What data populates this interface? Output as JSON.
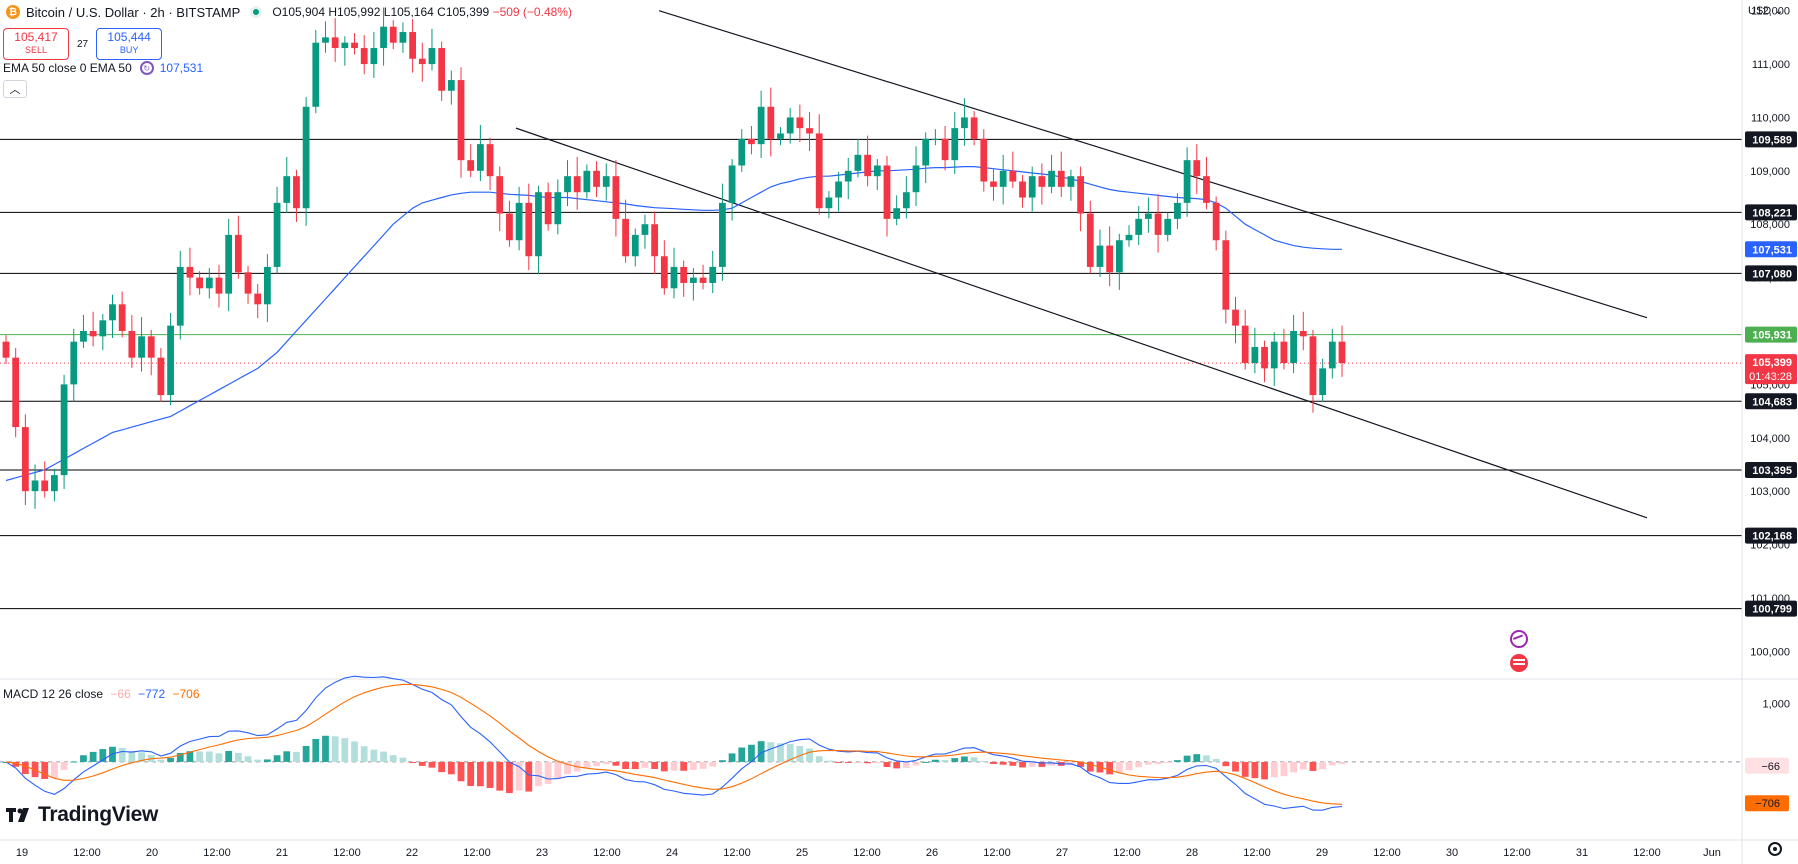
{
  "header": {
    "symbol": "Bitcoin / U.S. Dollar · 2h · BITSTAMP",
    "open": "O105,904",
    "high": "H105,992",
    "low": "L105,164",
    "close": "C105,399",
    "change": "−509 (−0.48%)"
  },
  "trade": {
    "sell_price": "105,417",
    "sell_label": "SELL",
    "spread": "27",
    "buy_price": "105,444",
    "buy_label": "BUY"
  },
  "indicators": {
    "ema_label": "EMA 50 close 0 EMA 50",
    "ema_value": "107,531",
    "macd_label": "MACD 12 26 close",
    "macd_hist": "−66",
    "macd_line": "−772",
    "macd_signal": "−706"
  },
  "currency": "USD",
  "brand": "TradingView",
  "icons": [
    "bitcoin-icon",
    "live-dot-icon",
    "ema-settings-icon",
    "chevron-up-icon",
    "gear-icon",
    "event-icon",
    "us-flag-icon"
  ],
  "colors": {
    "up": "#089981",
    "down": "#f23645",
    "ema": "#2962ff",
    "signal": "#ff6d00",
    "level_green": "#4caf50"
  },
  "chart_data": {
    "type": "candlestick",
    "timeframe": "2h",
    "x_ticks": [
      "19",
      "12:00",
      "20",
      "12:00",
      "21",
      "12:00",
      "22",
      "12:00",
      "23",
      "12:00",
      "24",
      "12:00",
      "25",
      "12:00",
      "26",
      "12:00",
      "27",
      "12:00",
      "28",
      "12:00",
      "29",
      "12:00",
      "30",
      "12:00",
      "31",
      "12:00",
      "Jun"
    ],
    "y_ticks": [
      100000,
      101000,
      102000,
      103000,
      104000,
      105000,
      106000,
      107000,
      108000,
      109000,
      110000,
      111000,
      112000
    ],
    "y_tick_labels": [
      "100,000",
      "101,000",
      "102,000",
      "103,000",
      "104,000",
      "105,000",
      "106,000",
      "107,000",
      "108,000",
      "109,000",
      "110,000",
      "111,000",
      "112,000"
    ],
    "ylim": [
      99500,
      112200
    ],
    "horizontal_levels": [
      {
        "value": 109589,
        "label": "109,589",
        "color": "#000000"
      },
      {
        "value": 108221,
        "label": "108,221",
        "color": "#000000"
      },
      {
        "value": 107080,
        "label": "107,080",
        "color": "#000000"
      },
      {
        "value": 105931,
        "label": "105,931",
        "color": "#4caf50"
      },
      {
        "value": 104683,
        "label": "104,683",
        "color": "#000000"
      },
      {
        "value": 103395,
        "label": "103,395",
        "color": "#000000"
      },
      {
        "value": 102168,
        "label": "102,168",
        "color": "#000000"
      },
      {
        "value": 100799,
        "label": "100,799",
        "color": "#000000"
      }
    ],
    "current_price": {
      "value": 105399,
      "label": "105,399",
      "countdown": "01:43:28"
    },
    "ema_tag": {
      "value": 107531,
      "label": "107,531"
    },
    "trendlines": [
      {
        "from": [
          4.9,
          112000
        ],
        "to": [
          12.5,
          106250
        ]
      },
      {
        "from": [
          3.8,
          109800
        ],
        "to": [
          12.5,
          102500
        ]
      }
    ],
    "closes": [
      105500,
      104200,
      103000,
      103200,
      103000,
      103300,
      105000,
      105800,
      106000,
      105900,
      106200,
      106500,
      106000,
      105500,
      105900,
      105500,
      104800,
      106100,
      107200,
      107000,
      106800,
      107000,
      106700,
      107800,
      107100,
      106700,
      106500,
      107200,
      108400,
      108900,
      108300,
      110200,
      111400,
      111500,
      111300,
      111400,
      111300,
      111000,
      111300,
      111700,
      111400,
      111600,
      111100,
      111000,
      111300,
      110500,
      110700,
      109200,
      109000,
      109500,
      108900,
      108200,
      107700,
      108400,
      107400,
      108600,
      108000,
      108600,
      108900,
      108600,
      109000,
      108700,
      108900,
      108100,
      107400,
      107800,
      108000,
      107400,
      106800,
      107200,
      106900,
      107000,
      106900,
      107200,
      108400,
      109100,
      109600,
      109500,
      110200,
      109600,
      109700,
      110000,
      109800,
      109700,
      108300,
      108500,
      108800,
      109000,
      109300,
      108900,
      109100,
      108100,
      108300,
      108600,
      109100,
      109600,
      109600,
      109200,
      109800,
      110000,
      109600,
      108800,
      108700,
      109000,
      108800,
      108500,
      108900,
      108700,
      109000,
      108700,
      108900,
      108200,
      107200,
      107600,
      107100,
      107700,
      107800,
      108100,
      108200,
      107800,
      108100,
      108400,
      109200,
      108900,
      108400,
      107700,
      106400,
      106100,
      105400,
      105700,
      105300,
      105800,
      105400,
      106000,
      105900,
      104800,
      105300,
      105800,
      105400
    ],
    "ema50": [
      103200,
      103250,
      103300,
      103350,
      103400,
      103500,
      103600,
      103700,
      103800,
      103900,
      104000,
      104100,
      104150,
      104200,
      104250,
      104300,
      104350,
      104400,
      104500,
      104600,
      104700,
      104800,
      104900,
      105000,
      105100,
      105200,
      105300,
      105450,
      105600,
      105800,
      106000,
      106200,
      106400,
      106600,
      106800,
      107000,
      107200,
      107400,
      107600,
      107800,
      108000,
      108150,
      108300,
      108400,
      108450,
      108500,
      108550,
      108580,
      108600,
      108600,
      108600,
      108580,
      108560,
      108550,
      108540,
      108520,
      108500,
      108500,
      108500,
      108480,
      108460,
      108440,
      108420,
      108400,
      108380,
      108350,
      108330,
      108310,
      108300,
      108290,
      108280,
      108270,
      108260,
      108260,
      108270,
      108300,
      108400,
      108500,
      108600,
      108700,
      108760,
      108800,
      108850,
      108880,
      108900,
      108900,
      108920,
      108940,
      108960,
      108980,
      109000,
      109000,
      109010,
      109020,
      109030,
      109050,
      109060,
      109060,
      109070,
      109080,
      109080,
      109060,
      109040,
      109020,
      109000,
      108980,
      108960,
      108940,
      108920,
      108880,
      108850,
      108800,
      108750,
      108700,
      108650,
      108620,
      108600,
      108580,
      108560,
      108540,
      108520,
      108500,
      108490,
      108480,
      108460,
      108400,
      108300,
      108150,
      108000,
      107900,
      107800,
      107700,
      107650,
      107600,
      107570,
      107550,
      107540,
      107531,
      107531
    ],
    "macd": {
      "ylim": [
        -1300,
        1400
      ],
      "y_ticks": [
        1000
      ],
      "y_tick_labels": [
        "1,000"
      ],
      "hist_tag": "−66",
      "signal_tag": "−706"
    }
  }
}
